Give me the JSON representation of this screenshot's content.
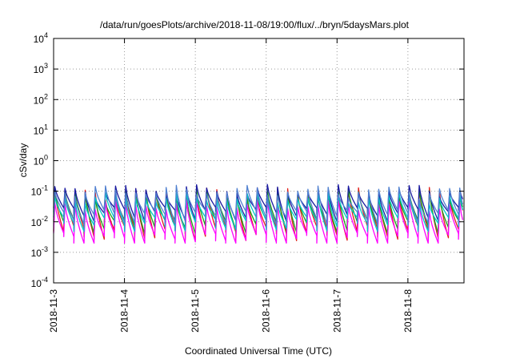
{
  "chart_data": {
    "type": "line",
    "title": "/data/run/goesPlots/archive/2018-11-08/19:00/flux/../bryn/5daysMars.plot",
    "xlabel": "Coordinated Universal Time (UTC)",
    "ylabel": "cSv/day",
    "y_scale": "log",
    "ylim": [
      0.0001,
      10000
    ],
    "yticks": [
      {
        "value": 0.0001,
        "base": "10",
        "exp": "-4"
      },
      {
        "value": 0.001,
        "base": "10",
        "exp": "-3"
      },
      {
        "value": 0.01,
        "base": "10",
        "exp": "-2"
      },
      {
        "value": 0.1,
        "base": "10",
        "exp": "-1"
      },
      {
        "value": 1,
        "base": "10",
        "exp": "0"
      },
      {
        "value": 10,
        "base": "10",
        "exp": "1"
      },
      {
        "value": 100,
        "base": "10",
        "exp": "2"
      },
      {
        "value": 1000,
        "base": "10",
        "exp": "3"
      },
      {
        "value": 10000,
        "base": "10",
        "exp": "4"
      }
    ],
    "xlim": [
      "2018-11-03",
      "2018-11-08T19:00"
    ],
    "xticks": [
      "2018-11-3",
      "2018-11-4",
      "2018-11-5",
      "2018-11-6",
      "2018-11-7",
      "2018-11-8"
    ],
    "grid": true,
    "oscillation": {
      "peaks_per_day": 7,
      "peak_range": [
        0.05,
        0.18
      ],
      "trough_range": [
        0.002,
        0.03
      ]
    },
    "series": [
      {
        "color": "#e0201c",
        "peak": 0.12,
        "trough": 0.006
      },
      {
        "color": "#1aa01a",
        "peak": 0.11,
        "trough": 0.01
      },
      {
        "color": "#1a1aa0",
        "peak": 0.15,
        "trough": 0.025
      },
      {
        "color": "#ff00ff",
        "peak": 0.05,
        "trough": 0.0035
      },
      {
        "color": "#00c8c8",
        "peak": 0.085,
        "trough": 0.012
      },
      {
        "color": "#5080d0",
        "peak": 0.14,
        "trough": 0.02
      }
    ]
  }
}
